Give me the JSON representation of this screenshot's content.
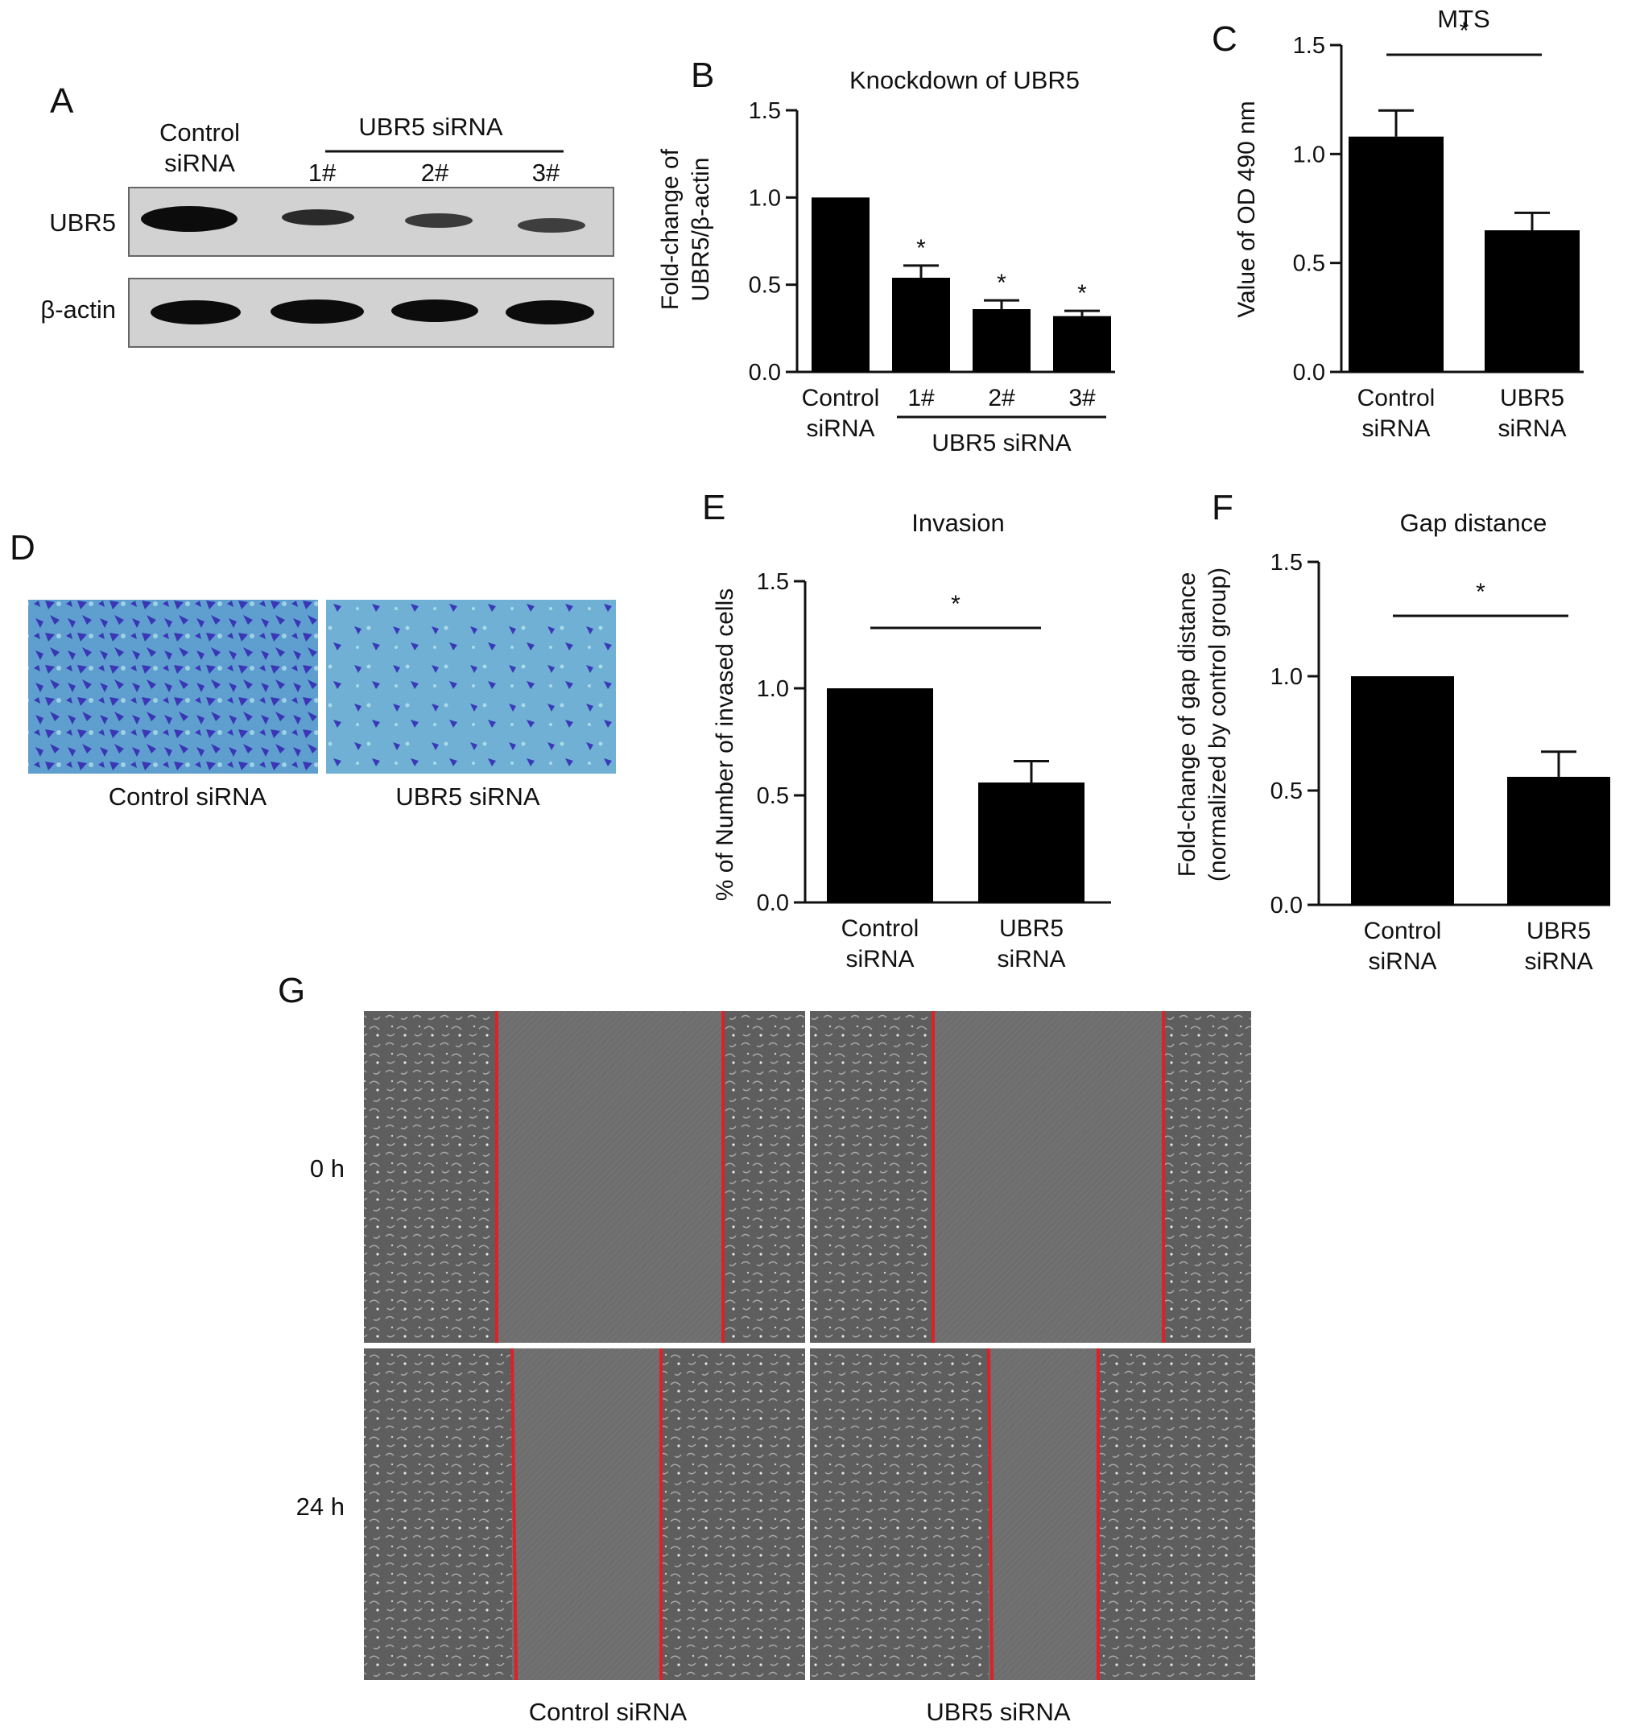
{
  "panel_letters": {
    "A": "A",
    "B": "B",
    "C": "C",
    "D": "D",
    "E": "E",
    "F": "F",
    "G": "G"
  },
  "panel_a": {
    "control_label_line1": "Control",
    "control_label_line2": "siRNA",
    "group_label": "UBR5 siRNA",
    "lane_labels": [
      "1#",
      "2#",
      "3#"
    ],
    "row_labels": [
      "UBR5",
      "β-actin"
    ]
  },
  "panel_d": {
    "captions": [
      "Control siRNA",
      "UBR5 siRNA"
    ]
  },
  "panel_g": {
    "row_labels": [
      "0 h",
      "24 h"
    ],
    "captions": [
      "Control siRNA",
      "UBR5 siRNA"
    ]
  },
  "colors": {
    "bar": "#000000",
    "gap_line": "#e01f26",
    "stain": "#3b39b8",
    "stain_bg": "#6aa7cf",
    "scratch_bg": "#6f6f6f"
  },
  "chart_data": [
    {
      "panel": "B",
      "type": "bar",
      "title": "Knockdown of UBR5",
      "ylabel": [
        "Fold-change of",
        "UBR5/β-actin"
      ],
      "xlabel": "",
      "categories": [
        [
          "Control",
          "siRNA"
        ],
        [
          "1#"
        ],
        [
          "2#"
        ],
        [
          "3#"
        ]
      ],
      "group_label": "UBR5 siRNA",
      "values": [
        1.0,
        0.54,
        0.36,
        0.32
      ],
      "errors": [
        0,
        0.07,
        0.05,
        0.03
      ],
      "significance": [
        "",
        "*",
        "*",
        "*"
      ],
      "ylim": [
        0,
        1.5
      ],
      "yticks": [
        "0.0",
        "0.5",
        "1.0",
        "1.5"
      ],
      "grid": false
    },
    {
      "panel": "C",
      "type": "bar",
      "title": "MTS",
      "ylabel": [
        "Value of OD 490 nm"
      ],
      "xlabel": "",
      "categories": [
        [
          "Control",
          "siRNA"
        ],
        [
          "UBR5",
          "siRNA"
        ]
      ],
      "values": [
        1.08,
        0.65
      ],
      "errors": [
        0.12,
        0.08
      ],
      "significance_bracket": "*",
      "ylim": [
        0,
        1.5
      ],
      "yticks": [
        "0.0",
        "0.5",
        "1.0",
        "1.5"
      ],
      "grid": false
    },
    {
      "panel": "E",
      "type": "bar",
      "title": "Invasion",
      "ylabel": [
        "% of Number of invased cells"
      ],
      "xlabel": "",
      "categories": [
        [
          "Control",
          "siRNA"
        ],
        [
          "UBR5",
          "siRNA"
        ]
      ],
      "values": [
        1.0,
        0.56
      ],
      "errors": [
        0,
        0.1
      ],
      "significance_bracket": "*",
      "ylim": [
        0,
        1.5
      ],
      "yticks": [
        "0.0",
        "0.5",
        "1.0",
        "1.5"
      ],
      "grid": false
    },
    {
      "panel": "F",
      "type": "bar",
      "title": "Gap distance",
      "ylabel": [
        "Fold-change of gap distance",
        "(normalized by control group)"
      ],
      "xlabel": "",
      "categories": [
        [
          "Control",
          "siRNA"
        ],
        [
          "UBR5",
          "siRNA"
        ]
      ],
      "values": [
        1.0,
        0.56
      ],
      "errors": [
        0,
        0.11
      ],
      "significance_bracket": "*",
      "ylim": [
        0,
        1.5
      ],
      "yticks": [
        "0.0",
        "0.5",
        "1.0",
        "1.5"
      ],
      "grid": false
    }
  ]
}
